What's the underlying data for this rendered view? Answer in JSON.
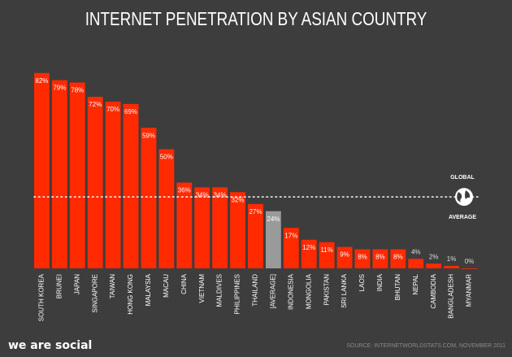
{
  "chart_data": {
    "type": "bar",
    "title": "INTERNET PENETRATION BY ASIAN COUNTRY",
    "categories": [
      "SOUTH KOREA",
      "BRUNEI",
      "JAPAN",
      "SINGAPORE",
      "TAIWAN",
      "HONG KONG",
      "MALAYSIA",
      "MACAU",
      "CHINA",
      "VIETNAM",
      "MALDIVES",
      "PHILIPPINES",
      "THAILAND",
      "[AVERAGE]",
      "INDONESIA",
      "MONGOLIA",
      "PAKISTAN",
      "SRI LANKA",
      "LAOS",
      "INDIA",
      "BHUTAN",
      "NEPAL",
      "CAMBODIA",
      "BANGLADESH",
      "MYANMAR"
    ],
    "values": [
      82,
      79,
      78,
      72,
      70,
      69,
      59,
      50,
      36,
      34,
      34,
      32,
      27,
      24,
      17,
      12,
      11,
      9,
      8,
      8,
      8,
      4,
      2,
      1,
      0
    ],
    "value_labels": [
      "82%",
      "79%",
      "78%",
      "72%",
      "70%",
      "69%",
      "59%",
      "50%",
      "36%",
      "34%",
      "34%",
      "32%",
      "27%",
      "24%",
      "17%",
      "12%",
      "11%",
      "9%",
      "8%",
      "8%",
      "8%",
      "4%",
      "2%",
      "1%",
      "0%"
    ],
    "colors": [
      "#ff2a00",
      "#ff2a00",
      "#ff2a00",
      "#ff2a00",
      "#ff2a00",
      "#ff2a00",
      "#ff2a00",
      "#ff2a00",
      "#ff2a00",
      "#ff2a00",
      "#ff2a00",
      "#ff2a00",
      "#ff2a00",
      "#9a9a9a",
      "#ff2a00",
      "#ff2a00",
      "#ff2a00",
      "#ff2a00",
      "#ff2a00",
      "#ff2a00",
      "#ff2a00",
      "#ff2a00",
      "#ff2a00",
      "#ff2a00",
      "#ff2a00"
    ],
    "ylim": [
      0,
      85
    ],
    "reference_line": {
      "value": 30,
      "label_top": "GLOBAL",
      "label_bottom": "AVERAGE"
    },
    "source": "SOURCE: INTERNETWORLDSTATS.COM, NOVEMBER 2011",
    "brand": "we are social"
  }
}
